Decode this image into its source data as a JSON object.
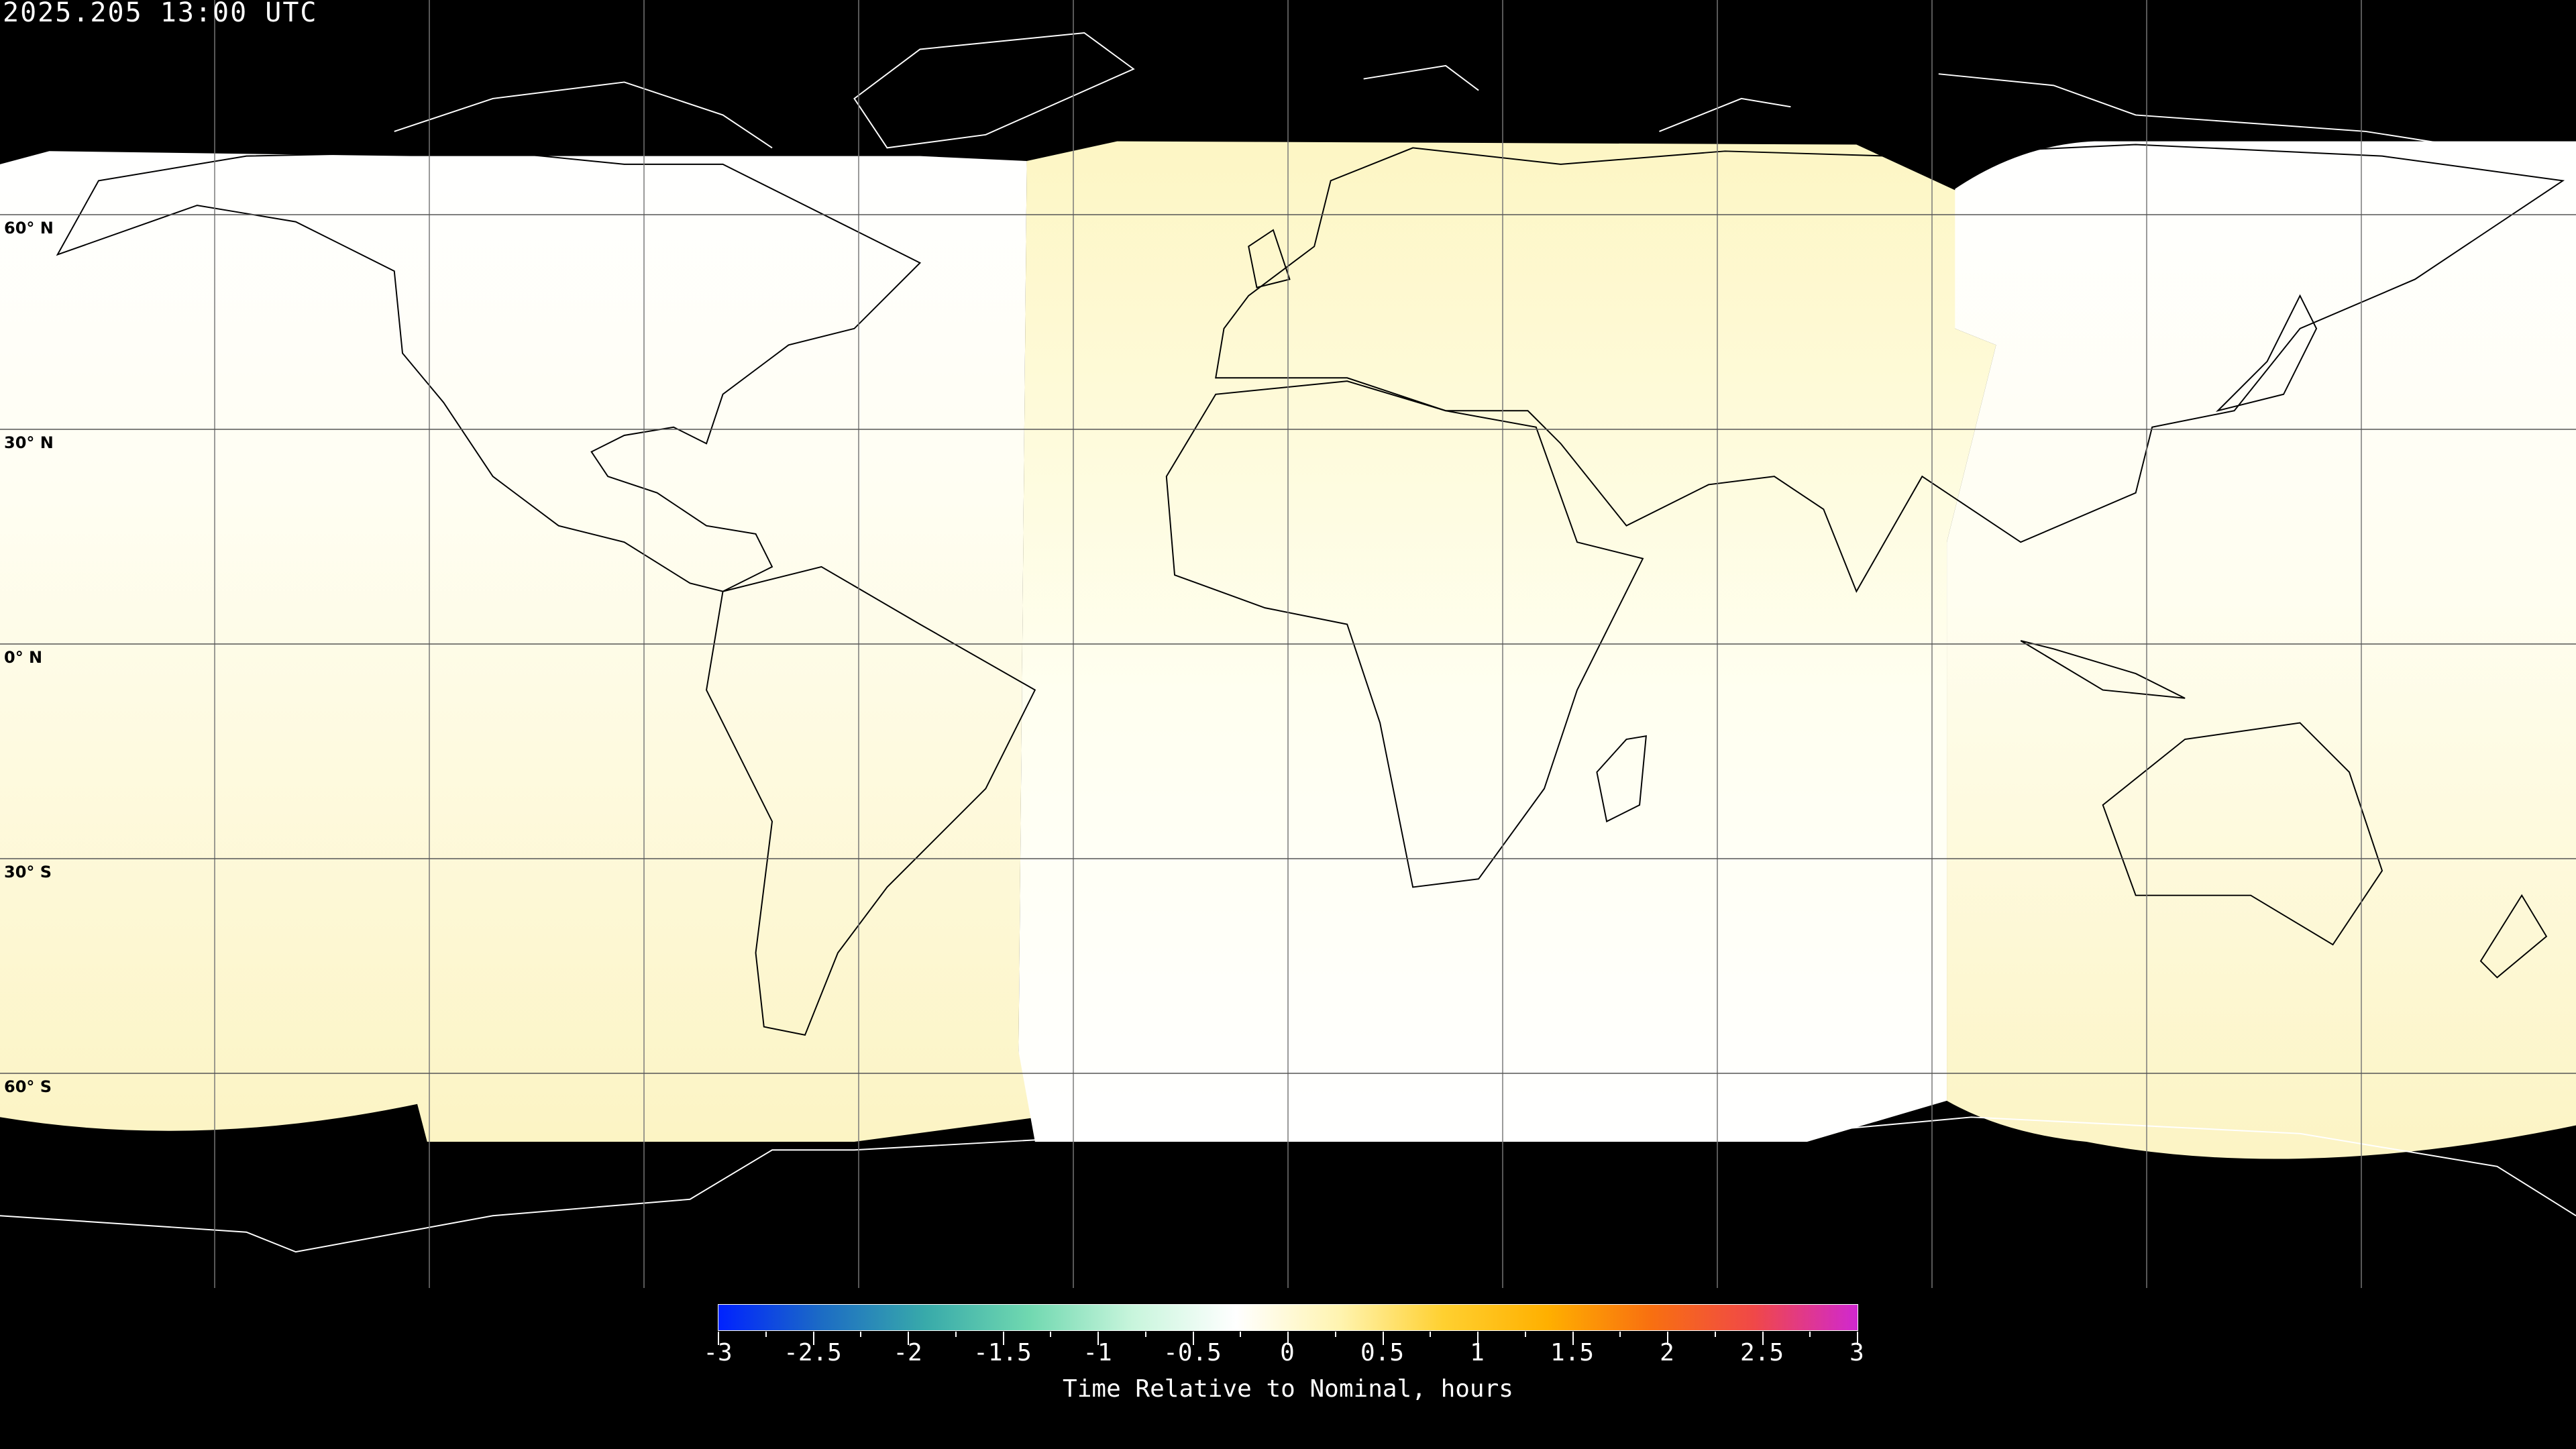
{
  "title": "2025.205 13:00 UTC",
  "map": {
    "projection": "equirectangular",
    "background_color": "#000000",
    "coverage_colors": {
      "white": "#ffffff",
      "pale_yellow": "#fdf6c8"
    },
    "lat_labels": [
      "60° N",
      "30° N",
      "0° N",
      "30° S",
      "60° S"
    ],
    "grid_spacing_deg": 30
  },
  "colorbar": {
    "min": -3,
    "max": 3,
    "tick_labels": [
      "-3",
      "-2.5",
      "-2",
      "-1.5",
      "-1",
      "-0.5",
      "0",
      "0.5",
      "1",
      "1.5",
      "2",
      "2.5",
      "3"
    ],
    "label": "Time Relative to Nominal, hours",
    "colors": [
      "#0022ff",
      "#1c6cc4",
      "#38aaaa",
      "#70d8b0",
      "#c8f5dc",
      "#ffffff",
      "#fff4b0",
      "#ffd030",
      "#ffb000",
      "#f87010",
      "#f04848",
      "#d028d0"
    ]
  }
}
